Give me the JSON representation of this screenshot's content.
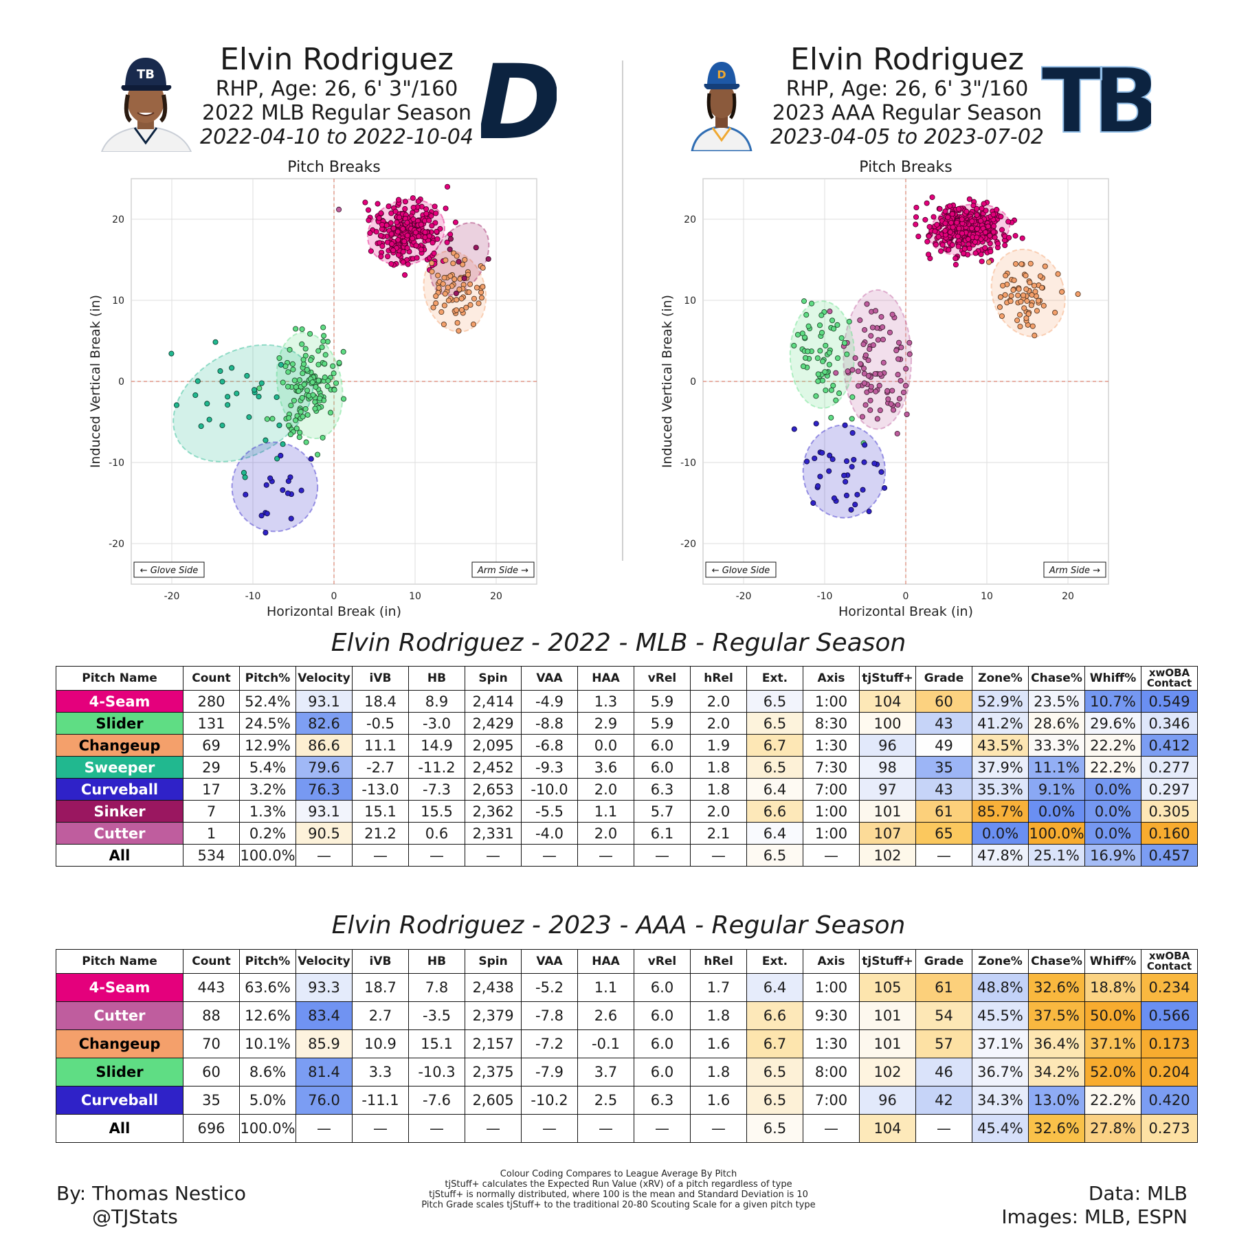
{
  "players": [
    {
      "name": "Elvin Rodriguez",
      "bio": "RHP, Age: 26, 6' 3\"/160",
      "season": "2022 MLB Regular Season",
      "dates": "2022-04-10 to 2022-10-04",
      "headshot_icon": "rays-headshot-icon",
      "team_logo": "tigers-logo-icon",
      "logo_text": "D",
      "cap_text": "TB"
    },
    {
      "name": "Elvin Rodriguez",
      "bio": "RHP, Age: 26, 6' 3\"/160",
      "season": "2023 AAA Regular Season",
      "dates": "2023-04-05 to 2023-07-02",
      "headshot_icon": "durham-headshot-icon",
      "team_logo": "rays-logo-icon",
      "logo_text": "TB",
      "cap_text": "D"
    }
  ],
  "pitch_colors": {
    "4-Seam": "#e4007c",
    "Slider": "#5fdd84",
    "Changeup": "#f4a06b",
    "Sweeper": "#21b88f",
    "Curveball": "#2f22c8",
    "Sinker": "#9a1760",
    "Cutter": "#bf5d9e"
  },
  "chart_data": [
    {
      "type": "scatter",
      "title": "Pitch Breaks",
      "xlabel": "Horizontal Break (in)",
      "ylabel": "Induced Vertical Break (in)",
      "xlim": [
        -25,
        25
      ],
      "ylim": [
        -25,
        25
      ],
      "xticks": [
        -20,
        -10,
        0,
        10,
        20
      ],
      "yticks": [
        -20,
        -10,
        0,
        10,
        20
      ],
      "annotations": [
        "← Glove Side",
        "Arm Side →"
      ],
      "grid": true,
      "series": [
        {
          "name": "4-Seam",
          "count": 280,
          "hb": 8.9,
          "ivb": 18.4,
          "sx": 2.2,
          "sy": 1.8,
          "angle": -20
        },
        {
          "name": "Slider",
          "count": 131,
          "hb": -3.0,
          "ivb": -0.5,
          "sx": 1.8,
          "sy": 3.0,
          "angle": -10
        },
        {
          "name": "Changeup",
          "count": 69,
          "hb": 14.9,
          "ivb": 11.1,
          "sx": 1.7,
          "sy": 2.3,
          "angle": -15
        },
        {
          "name": "Sweeper",
          "count": 29,
          "hb": -11.2,
          "ivb": -2.7,
          "sx": 4.2,
          "sy": 2.9,
          "angle": -30
        },
        {
          "name": "Curveball",
          "count": 17,
          "hb": -7.3,
          "ivb": -13.0,
          "sx": 2.4,
          "sy": 2.5,
          "angle": 0
        },
        {
          "name": "Sinker",
          "count": 7,
          "hb": 15.5,
          "ivb": 15.1,
          "sx": 1.4,
          "sy": 2.2,
          "angle": 30
        },
        {
          "name": "Cutter",
          "count": 1,
          "hb": 0.6,
          "ivb": 21.2,
          "sx": 0,
          "sy": 0,
          "angle": 0
        }
      ]
    },
    {
      "type": "scatter",
      "title": "Pitch Breaks",
      "xlabel": "Horizontal Break (in)",
      "ylabel": "Induced Vertical Break (in)",
      "xlim": [
        -25,
        25
      ],
      "ylim": [
        -25,
        25
      ],
      "xticks": [
        -20,
        -10,
        0,
        10,
        20
      ],
      "yticks": [
        -20,
        -10,
        0,
        10,
        20
      ],
      "annotations": [
        "← Glove Side",
        "Arm Side →"
      ],
      "grid": true,
      "series": [
        {
          "name": "4-Seam",
          "count": 443,
          "hb": 7.8,
          "ivb": 18.7,
          "sx": 2.3,
          "sy": 1.4,
          "angle": -10
        },
        {
          "name": "Cutter",
          "count": 88,
          "hb": -3.5,
          "ivb": 2.7,
          "sx": 1.9,
          "sy": 3.9,
          "angle": 0
        },
        {
          "name": "Changeup",
          "count": 70,
          "hb": 15.1,
          "ivb": 10.9,
          "sx": 2.0,
          "sy": 2.5,
          "angle": -20
        },
        {
          "name": "Slider",
          "count": 60,
          "hb": -10.3,
          "ivb": 3.3,
          "sx": 1.8,
          "sy": 3.0,
          "angle": 0
        },
        {
          "name": "Curveball",
          "count": 35,
          "hb": -7.6,
          "ivb": -11.1,
          "sx": 2.3,
          "sy": 2.6,
          "angle": 0
        }
      ]
    }
  ],
  "tables": [
    {
      "title": "Elvin Rodriguez - 2022 - MLB - Regular Season",
      "columns": [
        "Pitch Name",
        "Count",
        "Pitch%",
        "Velocity",
        "iVB",
        "HB",
        "Spin",
        "VAA",
        "HAA",
        "vRel",
        "hRel",
        "Ext.",
        "Axis",
        "tjStuff+",
        "Grade",
        "Zone%",
        "Chase%",
        "Whiff%",
        "xwOBA Contact"
      ],
      "rows": [
        [
          "4-Seam",
          "280",
          "52.4%",
          "93.1",
          "18.4",
          "8.9",
          "2,414",
          "-4.9",
          "1.3",
          "5.9",
          "2.0",
          "6.5",
          "1:00",
          "104",
          "60",
          "52.9%",
          "23.5%",
          "10.7%",
          "0.549"
        ],
        [
          "Slider",
          "131",
          "24.5%",
          "82.6",
          "-0.5",
          "-3.0",
          "2,429",
          "-8.8",
          "2.9",
          "5.9",
          "2.0",
          "6.5",
          "8:30",
          "100",
          "43",
          "41.2%",
          "28.6%",
          "29.6%",
          "0.346"
        ],
        [
          "Changeup",
          "69",
          "12.9%",
          "86.6",
          "11.1",
          "14.9",
          "2,095",
          "-6.8",
          "0.0",
          "6.0",
          "1.9",
          "6.7",
          "1:30",
          "96",
          "49",
          "43.5%",
          "33.3%",
          "22.2%",
          "0.412"
        ],
        [
          "Sweeper",
          "29",
          "5.4%",
          "79.6",
          "-2.7",
          "-11.2",
          "2,452",
          "-9.3",
          "3.6",
          "6.0",
          "1.8",
          "6.5",
          "7:30",
          "98",
          "35",
          "37.9%",
          "11.1%",
          "22.2%",
          "0.277"
        ],
        [
          "Curveball",
          "17",
          "3.2%",
          "76.3",
          "-13.0",
          "-7.3",
          "2,653",
          "-10.0",
          "2.0",
          "6.3",
          "1.8",
          "6.4",
          "7:00",
          "97",
          "43",
          "35.3%",
          "9.1%",
          "0.0%",
          "0.297"
        ],
        [
          "Sinker",
          "7",
          "1.3%",
          "93.1",
          "15.1",
          "15.5",
          "2,362",
          "-5.5",
          "1.1",
          "5.7",
          "2.0",
          "6.6",
          "1:00",
          "101",
          "61",
          "85.7%",
          "0.0%",
          "0.0%",
          "0.305"
        ],
        [
          "Cutter",
          "1",
          "0.2%",
          "90.5",
          "21.2",
          "0.6",
          "2,331",
          "-4.0",
          "2.0",
          "6.1",
          "2.1",
          "6.4",
          "1:00",
          "107",
          "65",
          "0.0%",
          "100.0%",
          "0.0%",
          "0.160"
        ],
        [
          "All",
          "534",
          "100.0%",
          "—",
          "—",
          "—",
          "—",
          "—",
          "—",
          "—",
          "—",
          "6.5",
          "—",
          "102",
          "—",
          "47.8%",
          "25.1%",
          "16.9%",
          "0.457"
        ]
      ],
      "cell_colors": [
        [
          "",
          "",
          "",
          "#e6ecfb",
          "",
          "",
          "",
          "",
          "",
          "",
          "",
          "#f2f4fc",
          "",
          "#fde8b7",
          "#fcd280",
          "#dce5fb",
          "#f2f4fc",
          "#7598f2",
          "#6a8ff2"
        ],
        [
          "",
          "",
          "",
          "#7e9ff3",
          "",
          "",
          "",
          "",
          "",
          "",
          "",
          "#fdf3dc",
          "",
          "#fffaf0",
          "#c6d4f8",
          "#e4ebfb",
          "#fdf9f1",
          "#f4f6fd",
          "#dfe7fb"
        ],
        [
          "",
          "",
          "",
          "#fdefd2",
          "",
          "",
          "",
          "",
          "",
          "",
          "",
          "#fde7b5",
          "",
          "#e2e9fb",
          "#fefefe",
          "#fde6b3",
          "#fbf9f7",
          "#fdf9f2",
          "#7b9df3"
        ],
        [
          "",
          "",
          "",
          "#a0b8f6",
          "",
          "",
          "",
          "",
          "",
          "",
          "",
          "#fdf1d7",
          "",
          "#eef2fc",
          "#9cb5f6",
          "#eaeffc",
          "#93aff5",
          "#fdf9f2",
          "#e6ecfb"
        ],
        [
          "",
          "",
          "",
          "#7799f2",
          "",
          "",
          "",
          "",
          "",
          "",
          "",
          "#fefaf3",
          "",
          "#e8edfb",
          "#c6d4f8",
          "#dee6fb",
          "#8aa8f4",
          "#7598f2",
          "#e9eefc"
        ],
        [
          "",
          "",
          "",
          "#f2f4fc",
          "",
          "",
          "",
          "",
          "",
          "",
          "",
          "#fde8b9",
          "",
          "#fdf8ee",
          "#fcd07b",
          "#f8b13a",
          "#6a8ff2",
          "#7598f2",
          "#fde7b6"
        ],
        [
          "",
          "",
          "",
          "#fdf2da",
          "",
          "",
          "",
          "",
          "",
          "",
          "",
          "#f9fafe",
          "",
          "#fcdb98",
          "#fbc85e",
          "#6a8ff2",
          "#f8ac2f",
          "#7598f2",
          "#f8ac2f"
        ],
        [
          "",
          "",
          "",
          "",
          "",
          "",
          "",
          "",
          "",
          "",
          "",
          "#fefaf3",
          "",
          "#fef8ea",
          "",
          "#eef2fc",
          "#dae3fa",
          "#a6bdf6",
          "#7b9df3"
        ]
      ]
    },
    {
      "title": "Elvin Rodriguez - 2023 - AAA - Regular Season",
      "columns": [
        "Pitch Name",
        "Count",
        "Pitch%",
        "Velocity",
        "iVB",
        "HB",
        "Spin",
        "VAA",
        "HAA",
        "vRel",
        "hRel",
        "Ext.",
        "Axis",
        "tjStuff+",
        "Grade",
        "Zone%",
        "Chase%",
        "Whiff%",
        "xwOBA Contact"
      ],
      "rows": [
        [
          "4-Seam",
          "443",
          "63.6%",
          "93.3",
          "18.7",
          "7.8",
          "2,438",
          "-5.2",
          "1.1",
          "6.0",
          "1.7",
          "6.4",
          "1:00",
          "105",
          "61",
          "48.8%",
          "32.6%",
          "18.8%",
          "0.234"
        ],
        [
          "Cutter",
          "88",
          "12.6%",
          "83.4",
          "2.7",
          "-3.5",
          "2,379",
          "-7.8",
          "2.6",
          "6.0",
          "1.8",
          "6.6",
          "9:30",
          "101",
          "54",
          "45.5%",
          "37.5%",
          "50.0%",
          "0.566"
        ],
        [
          "Changeup",
          "70",
          "10.1%",
          "85.9",
          "10.9",
          "15.1",
          "2,157",
          "-7.2",
          "-0.1",
          "6.0",
          "1.6",
          "6.7",
          "1:30",
          "101",
          "57",
          "37.1%",
          "36.4%",
          "37.1%",
          "0.173"
        ],
        [
          "Slider",
          "60",
          "8.6%",
          "81.4",
          "3.3",
          "-10.3",
          "2,375",
          "-7.9",
          "3.7",
          "6.0",
          "1.8",
          "6.5",
          "8:00",
          "102",
          "46",
          "36.7%",
          "34.2%",
          "52.0%",
          "0.204"
        ],
        [
          "Curveball",
          "35",
          "5.0%",
          "76.0",
          "-11.1",
          "-7.6",
          "2,605",
          "-10.2",
          "2.5",
          "6.3",
          "1.6",
          "6.5",
          "7:00",
          "96",
          "42",
          "34.3%",
          "13.0%",
          "22.2%",
          "0.420"
        ],
        [
          "All",
          "696",
          "100.0%",
          "—",
          "—",
          "—",
          "—",
          "—",
          "—",
          "—",
          "—",
          "6.5",
          "—",
          "104",
          "—",
          "45.4%",
          "32.6%",
          "27.8%",
          "0.273"
        ]
      ],
      "cell_colors": [
        [
          "",
          "",
          "",
          "#e4ebfb",
          "",
          "",
          "",
          "",
          "",
          "",
          "",
          "#e6ecfb",
          "",
          "#fde5ae",
          "#fcd07b",
          "#c3d2f8",
          "#f9b83e",
          "#fbd383",
          "#f9b840"
        ],
        [
          "",
          "",
          "",
          "#7093f2",
          "",
          "",
          "",
          "",
          "",
          "",
          "",
          "#fde8b9",
          "",
          "#fdf8ee",
          "#fde7b5",
          "#dfe7fb",
          "#f9b840",
          "#f8ac2f",
          "#6a8ff2"
        ],
        [
          "",
          "",
          "",
          "#fdf3df",
          "",
          "",
          "",
          "",
          "",
          "",
          "",
          "#fde5ae",
          "",
          "#fdf8ee",
          "#fde1a4",
          "#f4f6fd",
          "#fde6b1",
          "#fbc357",
          "#f8ac2f"
        ],
        [
          "",
          "",
          "",
          "#7b9df3",
          "",
          "",
          "",
          "",
          "",
          "",
          "",
          "#fdf1d7",
          "",
          "#fef4e0",
          "#dae3fa",
          "#f0f3fc",
          "#fde7b6",
          "#f8ac2f",
          "#f8ac2f"
        ],
        [
          "",
          "",
          "",
          "#7b9df3",
          "",
          "",
          "",
          "",
          "",
          "",
          "",
          "#fdf1d7",
          "",
          "#e2e9fb",
          "#c6d4f8",
          "#e6ecfb",
          "#8eabf5",
          "#fdf9f2",
          "#7b9df3"
        ],
        [
          "",
          "",
          "",
          "",
          "",
          "",
          "",
          "",
          "",
          "",
          "",
          "#fefaf3",
          "",
          "#fde9ba",
          "",
          "#d6e0fa",
          "#f9c149",
          "#fbd184",
          "#fde1a4"
        ]
      ]
    }
  ],
  "footer": {
    "author": "By: Thomas Nestico",
    "handle": "@TJStats",
    "notes": [
      "Colour Coding Compares to League Average By Pitch",
      "tjStuff+ calculates the Expected Run Value (xRV) of a pitch regardless of type",
      "tjStuff+ is normally distributed, where 100 is the mean and Standard Deviation is 10",
      "Pitch Grade scales tjStuff+ to the traditional 20-80 Scouting Scale for a given pitch type"
    ],
    "data_source": "Data: MLB",
    "images_source": "Images: MLB, ESPN"
  }
}
